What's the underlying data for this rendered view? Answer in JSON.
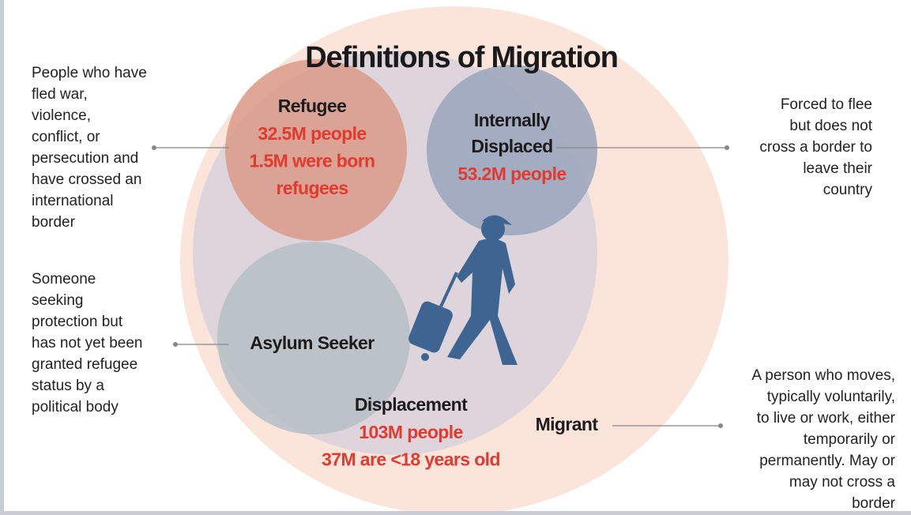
{
  "title": "Definitions of Migration",
  "nodes": [
    {
      "label_lines": [
        "Refugee"
      ],
      "stat_lines": [
        "32.5M people",
        "1.5M were born",
        "refugees"
      ],
      "description_lines": [
        "People who have",
        "fled war,",
        "violence,",
        "conflict, or",
        "persecution and",
        "have crossed an",
        "international",
        "border"
      ]
    },
    {
      "label_lines": [
        "Internally",
        "Displaced"
      ],
      "stat_lines": [
        "53.2M people"
      ],
      "description_lines": [
        "Forced to flee",
        "but does not",
        "cross a border to",
        "leave their",
        "country"
      ]
    },
    {
      "label_lines": [
        "Asylum Seeker"
      ],
      "description_lines": [
        "Someone",
        "seeking",
        "protection but",
        "has not yet been",
        "granted refugee",
        "status by a",
        "political body"
      ]
    },
    {
      "label_lines": [
        "Displacement"
      ],
      "stat_lines": [
        "103M people",
        "37M are <18 years old"
      ]
    },
    {
      "label_lines": [
        "Migrant"
      ],
      "description_lines": [
        "A person who moves,",
        "typically voluntarily,",
        "to live or work, either",
        "temporarily or",
        "permanently. May or",
        "may not cross a",
        "border"
      ]
    }
  ]
}
